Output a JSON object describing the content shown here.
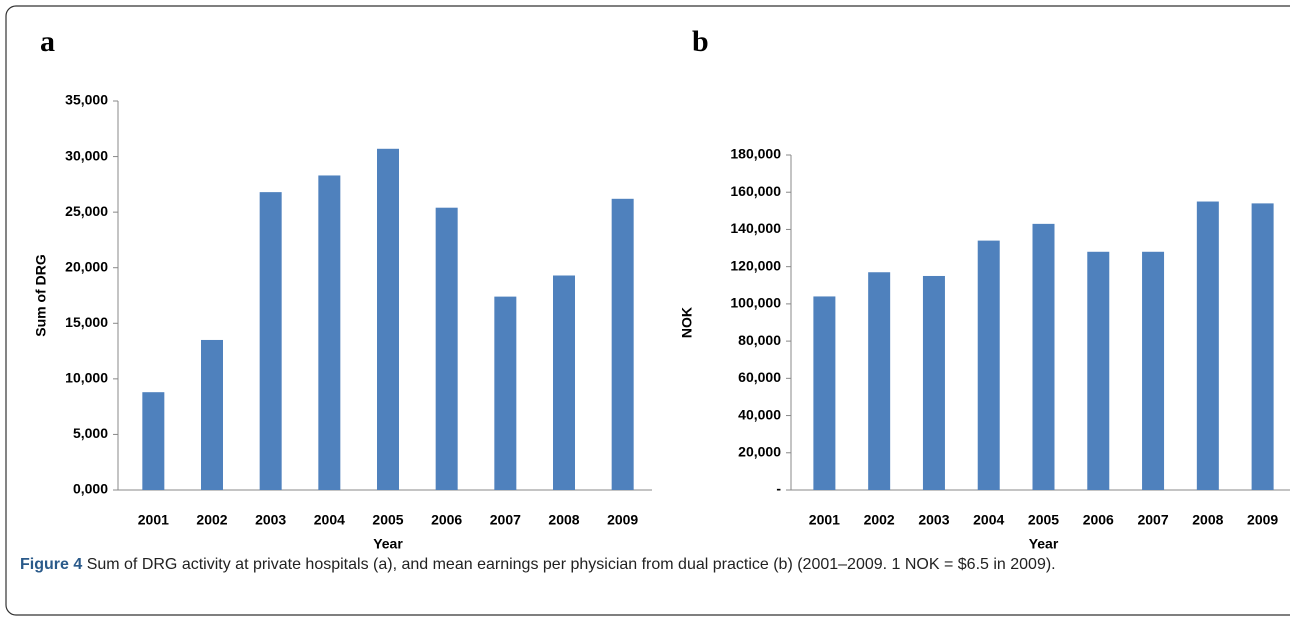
{
  "chart_data": [
    {
      "type": "bar",
      "panel": "a",
      "ylabel": "Sum of DRG",
      "xlabel": "Year",
      "categories": [
        "2001",
        "2002",
        "2003",
        "2004",
        "2005",
        "2006",
        "2007",
        "2008",
        "2009"
      ],
      "values": [
        8800,
        13500,
        26800,
        28300,
        30700,
        25400,
        17400,
        19300,
        26200
      ],
      "color": "#4f81bd",
      "ylim": [
        0,
        35000
      ],
      "yticks": [
        {
          "value": 0,
          "label": "0,000"
        },
        {
          "value": 5000,
          "label": "5,000"
        },
        {
          "value": 10000,
          "label": "10,000"
        },
        {
          "value": 15000,
          "label": "15,000"
        },
        {
          "value": 20000,
          "label": "20,000"
        },
        {
          "value": 25000,
          "label": "25,000"
        },
        {
          "value": 30000,
          "label": "30,000"
        },
        {
          "value": 35000,
          "label": "35,000"
        }
      ],
      "grid": false
    },
    {
      "type": "bar",
      "panel": "b",
      "ylabel": "NOK",
      "xlabel": "Year",
      "categories": [
        "2001",
        "2002",
        "2003",
        "2004",
        "2005",
        "2006",
        "2007",
        "2008",
        "2009"
      ],
      "values": [
        104000,
        117000,
        115000,
        134000,
        143000,
        128000,
        128000,
        155000,
        154000
      ],
      "color": "#4f81bd",
      "ylim": [
        0,
        180000
      ],
      "yticks": [
        {
          "value": 0,
          "label": "-"
        },
        {
          "value": 20000,
          "label": "20,000"
        },
        {
          "value": 40000,
          "label": "40,000"
        },
        {
          "value": 60000,
          "label": "60,000"
        },
        {
          "value": 80000,
          "label": "80,000"
        },
        {
          "value": 100000,
          "label": "100,000"
        },
        {
          "value": 120000,
          "label": "120,000"
        },
        {
          "value": 140000,
          "label": "140,000"
        },
        {
          "value": 160000,
          "label": "160,000"
        },
        {
          "value": 180000,
          "label": "180,000"
        }
      ],
      "grid": false
    }
  ],
  "caption": {
    "label": "Figure 4",
    "text": "Sum of DRG activity at private hospitals (a), and mean earnings per physician from dual practice (b) (2001–2009. 1 NOK = $6.5 in 2009)."
  }
}
